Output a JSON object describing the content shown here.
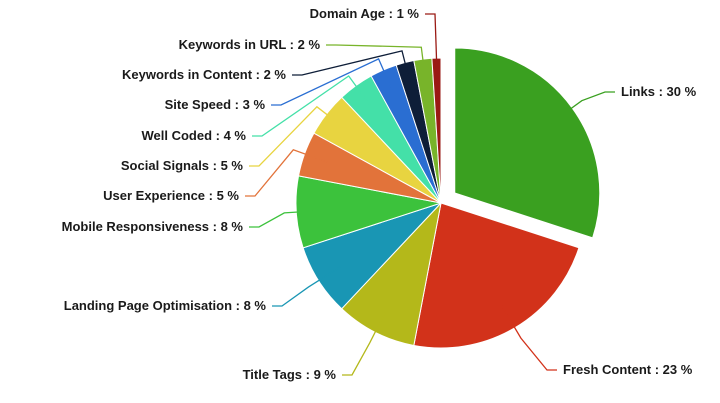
{
  "chart_data": {
    "type": "pie",
    "title": "",
    "unit": "%",
    "exploded": "Links",
    "slices": [
      {
        "name": "Links",
        "value": 30,
        "label": "Links : 30 %",
        "color": "#3aa020"
      },
      {
        "name": "Fresh Content",
        "value": 23,
        "label": "Fresh Content : 23 %",
        "color": "#d2321a"
      },
      {
        "name": "Title Tags",
        "value": 9,
        "label": "Title Tags : 9 %",
        "color": "#b4b81a"
      },
      {
        "name": "Landing Page Optimisation",
        "value": 8,
        "label": "Landing Page Optimisation : 8 %",
        "color": "#1996b4"
      },
      {
        "name": "Mobile Responsiveness",
        "value": 8,
        "label": "Mobile Responsiveness : 8 %",
        "color": "#3cc23c"
      },
      {
        "name": "User Experience",
        "value": 5,
        "label": "User Experience : 5 %",
        "color": "#e2733a"
      },
      {
        "name": "Social Signals",
        "value": 5,
        "label": "Social Signals : 5 %",
        "color": "#e8d440"
      },
      {
        "name": "Well Coded",
        "value": 4,
        "label": "Well Coded : 4 %",
        "color": "#44e0a8"
      },
      {
        "name": "Site Speed",
        "value": 3,
        "label": "Site Speed : 3 %",
        "color": "#2a6ed2"
      },
      {
        "name": "Keywords in Content",
        "value": 2,
        "label": "Keywords in Content : 2 %",
        "color": "#0e1e38"
      },
      {
        "name": "Keywords in URL",
        "value": 2,
        "label": "Keywords in URL : 2 %",
        "color": "#78b42a"
      },
      {
        "name": "Domain Age",
        "value": 1,
        "label": "Domain Age : 1 %",
        "color": "#9a1a14"
      }
    ]
  }
}
